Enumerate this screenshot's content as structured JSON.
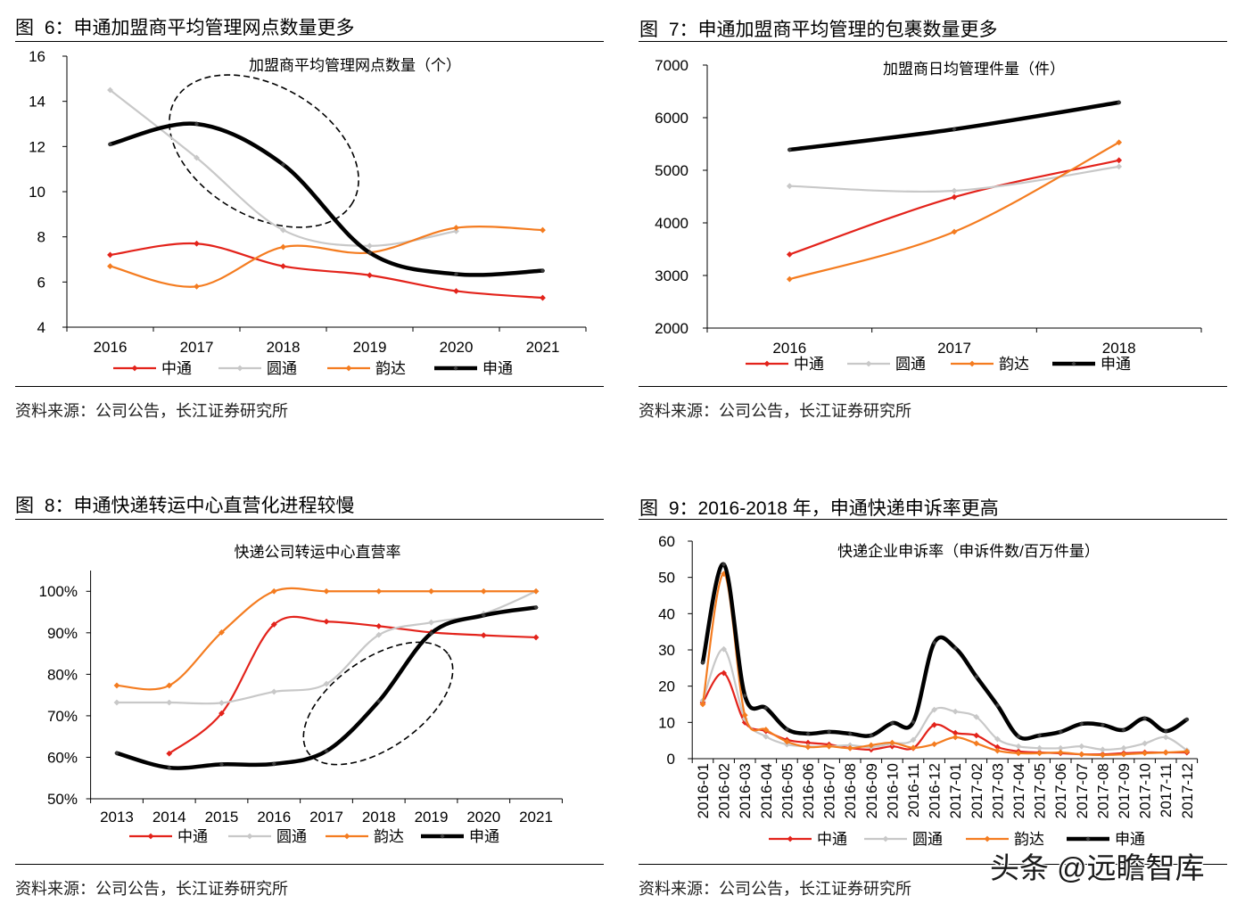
{
  "panels": [
    {
      "figure_label": "图 6：",
      "title": "申通加盟商平均管理网点数量更多",
      "source": "资料来源：公司公告，长江证券研究所"
    },
    {
      "figure_label": "图 7：",
      "title": "申通加盟商平均管理的包裹数量更多",
      "source": "资料来源：公司公告，长江证券研究所"
    },
    {
      "figure_label": "图 8：",
      "title": "申通快递转运中心直营化进程较慢",
      "source": "资料来源：公司公告，长江证券研究所"
    },
    {
      "figure_label": "图 9：",
      "title": "2016-2018 年，申通快递申诉率更高",
      "source": "资料来源：公司公告，长江证券研究所"
    }
  ],
  "watermark": "头条 @远瞻智库",
  "chart_data": [
    {
      "type": "line",
      "title": "加盟商平均管理网点数量（个）",
      "categories": [
        "2016",
        "2017",
        "2018",
        "2019",
        "2020",
        "2021"
      ],
      "ylim": [
        4,
        16
      ],
      "yticks": [
        4,
        6,
        8,
        10,
        12,
        14,
        16
      ],
      "ytick_labels": [
        "4",
        "6",
        "8",
        "10",
        "12",
        "14",
        "16"
      ],
      "legend": "bottom",
      "series": [
        {
          "name": "中通",
          "color": "#e3231b",
          "values": [
            7.2,
            7.7,
            6.7,
            6.3,
            5.6,
            5.3
          ]
        },
        {
          "name": "圆通",
          "color": "#c8c8c8",
          "values": [
            14.5,
            11.5,
            8.3,
            7.6,
            8.25,
            null
          ]
        },
        {
          "name": "韵达",
          "color": "#f47c20",
          "values": [
            6.7,
            5.8,
            7.55,
            7.3,
            8.4,
            8.3
          ]
        },
        {
          "name": "申通",
          "color": "#000000",
          "values": [
            12.1,
            13.0,
            11.2,
            7.3,
            6.35,
            6.5
          ]
        }
      ]
    },
    {
      "type": "line",
      "title": "加盟商日均管理件量（件）",
      "categories": [
        "2016",
        "2017",
        "2018"
      ],
      "ylim": [
        2000,
        7000
      ],
      "yticks": [
        2000,
        3000,
        4000,
        5000,
        6000,
        7000
      ],
      "ytick_labels": [
        "2000",
        "3000",
        "4000",
        "5000",
        "6000",
        "7000"
      ],
      "legend": "bottom",
      "series": [
        {
          "name": "中通",
          "color": "#e3231b",
          "values": [
            3400,
            4490,
            5190
          ]
        },
        {
          "name": "圆通",
          "color": "#c8c8c8",
          "values": [
            4700,
            4610,
            5070
          ]
        },
        {
          "name": "韵达",
          "color": "#f47c20",
          "values": [
            2930,
            3830,
            5530
          ]
        },
        {
          "name": "申通",
          "color": "#000000",
          "values": [
            5390,
            5780,
            6290
          ]
        }
      ]
    },
    {
      "type": "line",
      "title": "快递公司转运中心直营率",
      "categories": [
        "2013",
        "2014",
        "2015",
        "2016",
        "2017",
        "2018",
        "2019",
        "2020",
        "2021"
      ],
      "ylim": [
        50,
        105
      ],
      "yticks": [
        50,
        60,
        70,
        80,
        90,
        100
      ],
      "ytick_labels": [
        "50%",
        "60%",
        "70%",
        "80%",
        "90%",
        "100%"
      ],
      "legend": "bottom",
      "series": [
        {
          "name": "中通",
          "color": "#e3231b",
          "values": [
            null,
            60.9,
            70.6,
            92.0,
            92.7,
            91.6,
            90.1,
            89.4,
            88.9
          ]
        },
        {
          "name": "圆通",
          "color": "#c8c8c8",
          "values": [
            73.2,
            73.2,
            73.1,
            75.8,
            77.7,
            89.5,
            92.5,
            94.6,
            100
          ]
        },
        {
          "name": "韵达",
          "color": "#f47c20",
          "values": [
            77.3,
            77.3,
            90.1,
            100,
            100,
            100,
            100,
            100,
            100
          ]
        },
        {
          "name": "申通",
          "color": "#000000",
          "values": [
            61.0,
            57.5,
            58.3,
            58.4,
            61.5,
            73.5,
            89.9,
            94.2,
            96.1
          ]
        }
      ]
    },
    {
      "type": "line",
      "title": "快递企业申诉率（申诉件数/百万件量）",
      "categories": [
        "2016-01",
        "2016-02",
        "2016-03",
        "2016-04",
        "2016-05",
        "2016-06",
        "2016-07",
        "2016-08",
        "2016-09",
        "2016-10",
        "2016-11",
        "2016-12",
        "2017-01",
        "2017-02",
        "2017-03",
        "2017-04",
        "2017-05",
        "2017-06",
        "2017-07",
        "2017-08",
        "2017-09",
        "2017-10",
        "2017-11",
        "2017-12"
      ],
      "ylim": [
        0,
        60
      ],
      "yticks": [
        0,
        10,
        20,
        30,
        40,
        50,
        60
      ],
      "ytick_labels": [
        "0",
        "10",
        "20",
        "30",
        "40",
        "50",
        "60"
      ],
      "legend": "bottom",
      "series": [
        {
          "name": "中通",
          "color": "#e3231b",
          "values": [
            15.5,
            23.6,
            10.0,
            7.6,
            5.2,
            4.4,
            3.9,
            2.9,
            2.5,
            3.4,
            2.9,
            9.3,
            7.1,
            6.4,
            3.2,
            2.0,
            1.7,
            1.5,
            1.2,
            1.2,
            1.5,
            1.7,
            1.7,
            1.7
          ]
        },
        {
          "name": "圆通",
          "color": "#c8c8c8",
          "values": [
            16.0,
            30.2,
            11.0,
            6.1,
            3.9,
            3.4,
            3.4,
            3.7,
            3.2,
            4.2,
            5.2,
            13.5,
            13.0,
            11.5,
            5.4,
            3.4,
            2.9,
            2.9,
            3.4,
            2.5,
            2.9,
            4.2,
            5.9,
            2.3
          ]
        },
        {
          "name": "韵达",
          "color": "#f47c20",
          "values": [
            15.0,
            51.0,
            12.0,
            8.0,
            4.7,
            3.2,
            3.4,
            2.9,
            3.7,
            4.4,
            3.0,
            4.0,
            5.9,
            4.2,
            2.2,
            1.5,
            1.5,
            1.7,
            1.2,
            1.0,
            1.2,
            1.5,
            1.7,
            2.0
          ]
        },
        {
          "name": "申通",
          "color": "#000000",
          "values": [
            26.5,
            53.6,
            17.4,
            14.0,
            8.1,
            6.9,
            7.4,
            6.9,
            6.4,
            9.8,
            10.1,
            32.0,
            30.5,
            22.6,
            14.7,
            6.1,
            6.4,
            7.4,
            9.6,
            9.3,
            7.9,
            11.1,
            7.6,
            10.8
          ]
        }
      ]
    }
  ]
}
